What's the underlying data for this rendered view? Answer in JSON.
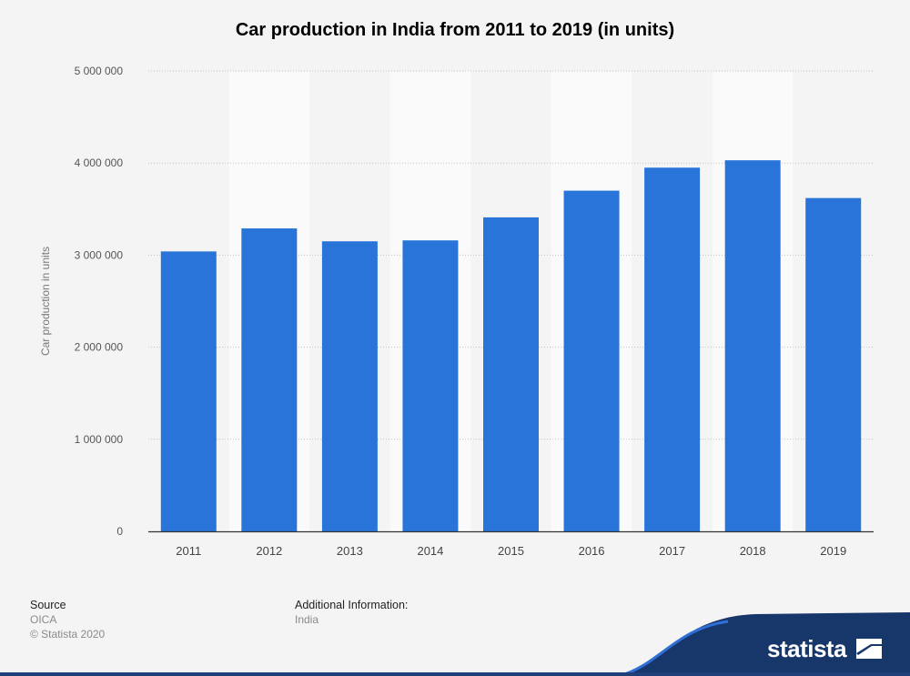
{
  "chart_data": {
    "type": "bar",
    "title": "Car production in India from 2011 to 2019 (in units)",
    "xlabel": "",
    "ylabel": "Car production in units",
    "categories": [
      "2011",
      "2012",
      "2013",
      "2014",
      "2015",
      "2016",
      "2017",
      "2018",
      "2019"
    ],
    "values": [
      3040000,
      3290000,
      3150000,
      3160000,
      3410000,
      3700000,
      3950000,
      4030000,
      3620000
    ],
    "ylim": [
      0,
      5000000
    ],
    "yticks": [
      "0",
      "1 000 000",
      "2 000 000",
      "3 000 000",
      "4 000 000",
      "5 000 000"
    ],
    "grid": true,
    "bar_color": "#2874d9"
  },
  "footer": {
    "source_heading": "Source",
    "source_name": "OICA",
    "copyright": "© Statista 2020",
    "additional_heading": "Additional Information:",
    "additional_value": "India"
  },
  "brand": {
    "name": "statista"
  }
}
